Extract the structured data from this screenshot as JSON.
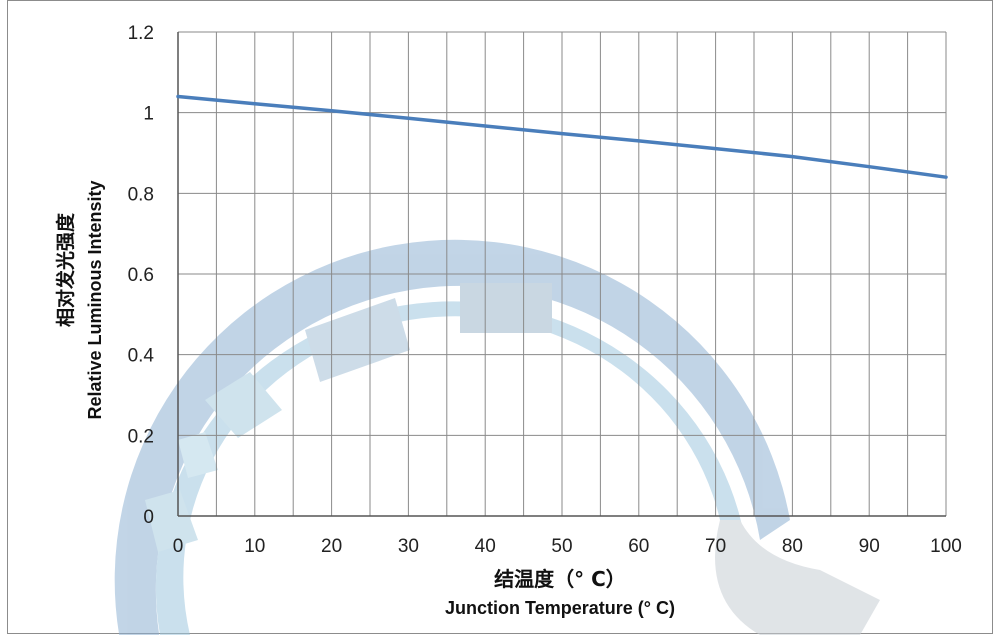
{
  "chart_data": {
    "type": "line",
    "x": [
      0,
      10,
      20,
      30,
      40,
      50,
      60,
      70,
      80,
      90,
      100
    ],
    "series": [
      {
        "values": [
          1.04,
          1.022,
          1.005,
          0.986,
          0.967,
          0.948,
          0.93,
          0.911,
          0.891,
          0.866,
          0.84
        ]
      }
    ],
    "xlabel_cn": "结温度（° C）",
    "xlabel": "Junction Temperature (° C)",
    "ylabel_cn": "相对发光强度",
    "ylabel": "Relative Luminous Intensity",
    "xlim": [
      0,
      100
    ],
    "ylim": [
      0,
      1.2
    ],
    "x_ticks": [
      "0",
      "10",
      "20",
      "30",
      "40",
      "50",
      "60",
      "70",
      "80",
      "90",
      "100"
    ],
    "y_ticks": [
      "0",
      "0.2",
      "0.4",
      "0.6",
      "0.8",
      "1",
      "1.2"
    ],
    "grid": true,
    "line_color": "#4a7ebb"
  }
}
